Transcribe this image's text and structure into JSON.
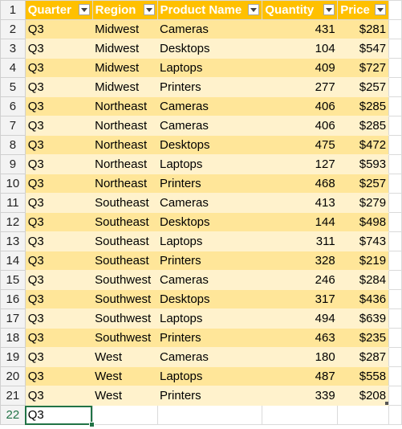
{
  "headers": [
    "Quarter",
    "Region",
    "Product Name",
    "Quantity",
    "Price"
  ],
  "row_numbers": [
    "1",
    "2",
    "3",
    "4",
    "5",
    "6",
    "7",
    "8",
    "9",
    "10",
    "11",
    "12",
    "13",
    "14",
    "15",
    "16",
    "17",
    "18",
    "19",
    "20",
    "21",
    "22"
  ],
  "rows": [
    [
      "Q3",
      "Midwest",
      "Cameras",
      "431",
      "$281"
    ],
    [
      "Q3",
      "Midwest",
      "Desktops",
      "104",
      "$547"
    ],
    [
      "Q3",
      "Midwest",
      "Laptops",
      "409",
      "$727"
    ],
    [
      "Q3",
      "Midwest",
      "Printers",
      "277",
      "$257"
    ],
    [
      "Q3",
      "Northeast",
      "Cameras",
      "406",
      "$285"
    ],
    [
      "Q3",
      "Northeast",
      "Cameras",
      "406",
      "$285"
    ],
    [
      "Q3",
      "Northeast",
      "Desktops",
      "475",
      "$472"
    ],
    [
      "Q3",
      "Northeast",
      "Laptops",
      "127",
      "$593"
    ],
    [
      "Q3",
      "Northeast",
      "Printers",
      "468",
      "$257"
    ],
    [
      "Q3",
      "Southeast",
      "Cameras",
      "413",
      "$279"
    ],
    [
      "Q3",
      "Southeast",
      "Desktops",
      "144",
      "$498"
    ],
    [
      "Q3",
      "Southeast",
      "Laptops",
      "311",
      "$743"
    ],
    [
      "Q3",
      "Southeast",
      "Printers",
      "328",
      "$219"
    ],
    [
      "Q3",
      "Southwest",
      "Cameras",
      "246",
      "$284"
    ],
    [
      "Q3",
      "Southwest",
      "Desktops",
      "317",
      "$436"
    ],
    [
      "Q3",
      "Southwest",
      "Laptops",
      "494",
      "$639"
    ],
    [
      "Q3",
      "Southwest",
      "Printers",
      "463",
      "$235"
    ],
    [
      "Q3",
      "West",
      "Cameras",
      "180",
      "$287"
    ],
    [
      "Q3",
      "West",
      "Laptops",
      "487",
      "$558"
    ],
    [
      "Q3",
      "West",
      "Printers",
      "339",
      "$208"
    ]
  ],
  "active_cell_value": "Q3",
  "colors": {
    "header": "#ffc000",
    "band_dark": "#ffe699",
    "band_light": "#fff2cc",
    "selection": "#217346"
  }
}
